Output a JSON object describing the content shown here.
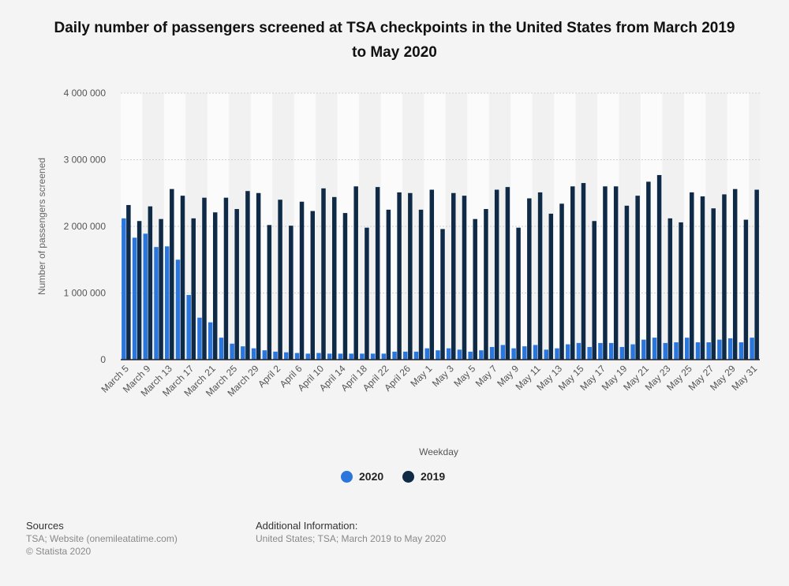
{
  "chart_data": {
    "type": "bar",
    "title": "Daily number of passengers screened at TSA checkpoints in the United States from March 2019 to May 2020",
    "xlabel": "Weekday",
    "ylabel": "Number of passengers screened",
    "ylim": [
      0,
      4000000
    ],
    "yticks": [
      0,
      1000000,
      2000000,
      3000000,
      4000000
    ],
    "ytick_labels": [
      "0",
      "1 000 000",
      "2 000 000",
      "3 000 000",
      "4 000 000"
    ],
    "grid": true,
    "legend_position": "bottom",
    "categories": [
      "March 5",
      "",
      "March 9",
      "",
      "March 13",
      "",
      "March 17",
      "",
      "March 21",
      "",
      "March 25",
      "",
      "March 29",
      "",
      "April 2",
      "",
      "April 6",
      "",
      "April 10",
      "",
      "April 14",
      "",
      "April 18",
      "",
      "April 22",
      "",
      "April 26",
      "",
      "May 1",
      "",
      "May 3",
      "",
      "May 5",
      "",
      "May 7",
      "",
      "May 9",
      "",
      "May 11",
      "",
      "May 13",
      "",
      "May 15",
      "",
      "May 17",
      "",
      "May 19",
      "",
      "May 21",
      "",
      "May 23",
      "",
      "May 25",
      "",
      "May 27",
      "",
      "May 29",
      "",
      "May 31"
    ],
    "series": [
      {
        "name": "2020",
        "color": "#2a76dd",
        "values": [
          2120000,
          1830000,
          1890000,
          1690000,
          1700000,
          1500000,
          970000,
          630000,
          560000,
          330000,
          240000,
          200000,
          170000,
          140000,
          120000,
          110000,
          100000,
          90000,
          100000,
          90000,
          90000,
          90000,
          90000,
          90000,
          90000,
          120000,
          120000,
          120000,
          170000,
          140000,
          170000,
          150000,
          120000,
          140000,
          190000,
          220000,
          170000,
          200000,
          220000,
          150000,
          170000,
          230000,
          250000,
          190000,
          250000,
          250000,
          190000,
          230000,
          300000,
          330000,
          250000,
          260000,
          330000,
          260000,
          260000,
          300000,
          320000,
          260000,
          330000
        ]
      },
      {
        "name": "2019",
        "color": "#0f2a46",
        "values": [
          2320000,
          2080000,
          2300000,
          2110000,
          2560000,
          2460000,
          2120000,
          2430000,
          2210000,
          2430000,
          2260000,
          2530000,
          2500000,
          2020000,
          2400000,
          2010000,
          2370000,
          2230000,
          2570000,
          2440000,
          2200000,
          2600000,
          1980000,
          2590000,
          2250000,
          2510000,
          2500000,
          2250000,
          2550000,
          1960000,
          2500000,
          2460000,
          2110000,
          2260000,
          2550000,
          2590000,
          1980000,
          2420000,
          2510000,
          2190000,
          2340000,
          2600000,
          2650000,
          2080000,
          2600000,
          2600000,
          2310000,
          2460000,
          2670000,
          2770000,
          2120000,
          2060000,
          2510000,
          2450000,
          2270000,
          2480000,
          2560000,
          2100000,
          2550000
        ]
      }
    ]
  },
  "footer": {
    "sources_heading": "Sources",
    "sources_line1": "TSA; Website (onemileatatime.com)",
    "sources_line2": "© Statista 2020",
    "additional_heading": "Additional Information:",
    "additional_text": "United States; TSA; March 2019 to May 2020"
  }
}
